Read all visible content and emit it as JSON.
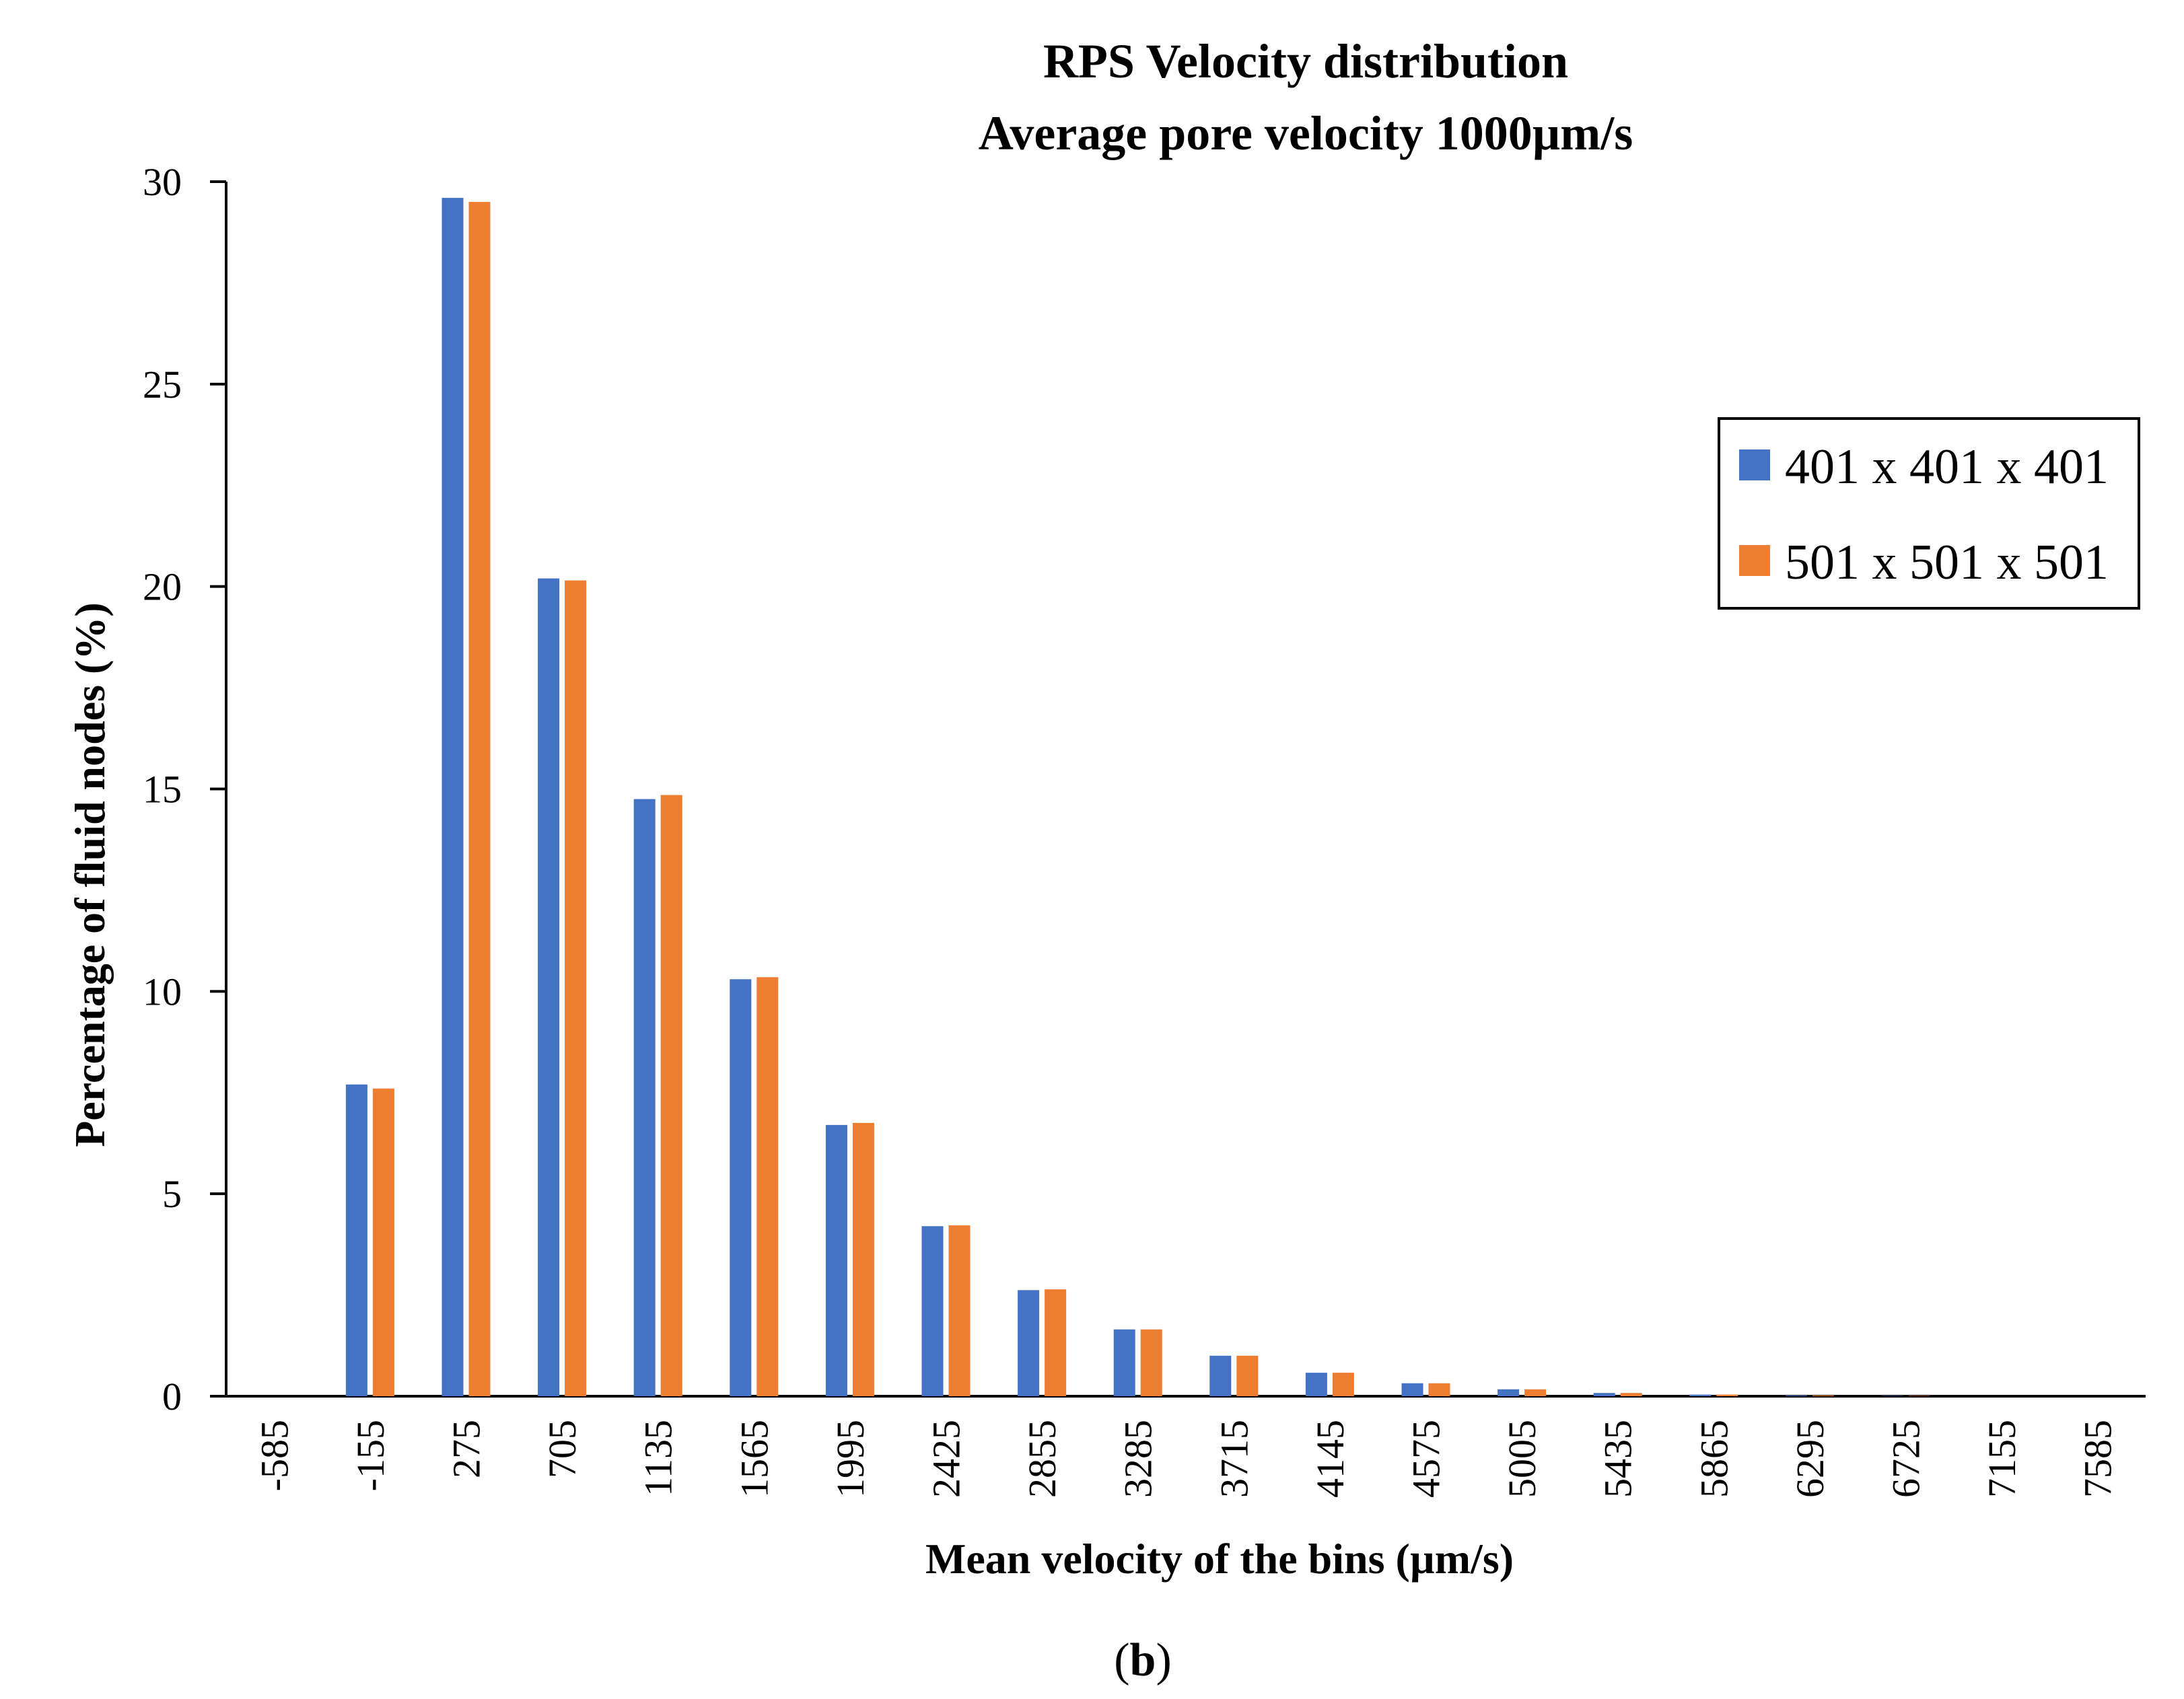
{
  "chart_data": {
    "type": "bar",
    "title": [
      "RPS Velocity distribution",
      "Average pore velocity 1000µm/s"
    ],
    "xlabel": "Mean velocity of the bins (µm/s)",
    "ylabel": "Percentage of fluid nodes (%)",
    "ylim": [
      0,
      30
    ],
    "yticks": [
      "0",
      "5",
      "10",
      "15",
      "20",
      "25",
      "30"
    ],
    "categories": [
      "-585",
      "-155",
      "275",
      "705",
      "1135",
      "1565",
      "1995",
      "2425",
      "2855",
      "3285",
      "3715",
      "4145",
      "4575",
      "5005",
      "5435",
      "5865",
      "6295",
      "6725",
      "7155",
      "7585"
    ],
    "series": [
      {
        "name": "401 x 401 x 401",
        "color": "#4472C4",
        "values": [
          0,
          7.7,
          29.6,
          20.2,
          14.75,
          10.3,
          6.7,
          4.2,
          2.62,
          1.65,
          1.0,
          0.58,
          0.32,
          0.17,
          0.08,
          0.04,
          0.02,
          0.01,
          0.0,
          0.0
        ]
      },
      {
        "name": "501 x 501 x 501",
        "color": "#ED7D31",
        "values": [
          0,
          7.6,
          29.5,
          20.15,
          14.85,
          10.35,
          6.75,
          4.22,
          2.64,
          1.65,
          1.0,
          0.58,
          0.32,
          0.17,
          0.08,
          0.04,
          0.02,
          0.01,
          0.0,
          0.0
        ]
      }
    ],
    "legend_position": "right",
    "grid": false
  },
  "caption": {
    "open": "(",
    "label": "b",
    "close": ")"
  }
}
